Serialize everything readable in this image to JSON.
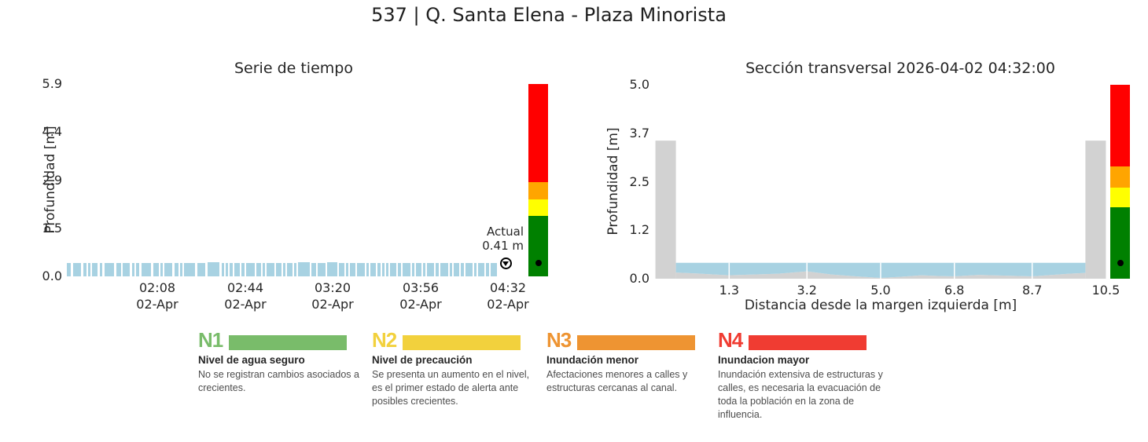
{
  "main_title": "537 | Q. Santa Elena - Plaza Minorista",
  "current": {
    "label_line1": "Actual",
    "label_line2": "0.41 m",
    "value_m": 0.41
  },
  "level_scale": {
    "colors_bottom_up": [
      "#008000",
      "#ffff00",
      "#ffa500",
      "#ff0000"
    ],
    "thresholds_m": [
      1.85,
      2.35,
      2.9
    ],
    "dot_color": "#000000"
  },
  "chart_data": [
    {
      "id": "serie_tiempo",
      "type": "bar",
      "title": "Serie de tiempo",
      "ylabel": "Profundidad [m]",
      "ylim": [
        0,
        5.9
      ],
      "grid": false,
      "bar_color": "#a8d2e2",
      "yticks": [
        {
          "v": 0,
          "label": "0.0"
        },
        {
          "v": 1.475,
          "label": "1.5"
        },
        {
          "v": 2.95,
          "label": "2.9"
        },
        {
          "v": 4.425,
          "label": "4.4"
        },
        {
          "v": 5.9,
          "label": "5.9"
        }
      ],
      "xticks": [
        {
          "time": "02:08",
          "date": "02-Apr",
          "px": 115
        },
        {
          "time": "02:44",
          "date": "02-Apr",
          "px": 227
        },
        {
          "time": "03:20",
          "date": "02-Apr",
          "px": 338
        },
        {
          "time": "03:56",
          "date": "02-Apr",
          "px": 450
        },
        {
          "time": "04:32",
          "date": "02-Apr",
          "px": 561
        }
      ],
      "marker": {
        "px": 558,
        "value_m": 0.41
      },
      "segments": [
        [
          0,
          5,
          0.41
        ],
        [
          8,
          10,
          0.42
        ],
        [
          21,
          4,
          0.4
        ],
        [
          27,
          3,
          0.41
        ],
        [
          32,
          7,
          0.42
        ],
        [
          42,
          3,
          0.4
        ],
        [
          48,
          12,
          0.42
        ],
        [
          63,
          6,
          0.41
        ],
        [
          71,
          9,
          0.42
        ],
        [
          83,
          3,
          0.4
        ],
        [
          88,
          4,
          0.41
        ],
        [
          95,
          12,
          0.42
        ],
        [
          110,
          7,
          0.41
        ],
        [
          119,
          3,
          0.4
        ],
        [
          124,
          10,
          0.42
        ],
        [
          137,
          5,
          0.41
        ],
        [
          144,
          3,
          0.4
        ],
        [
          149,
          14,
          0.42
        ],
        [
          166,
          10,
          0.41
        ],
        [
          179,
          15,
          0.43
        ],
        [
          197,
          3,
          0.4
        ],
        [
          202,
          3,
          0.41
        ],
        [
          207,
          4,
          0.4
        ],
        [
          213,
          7,
          0.42
        ],
        [
          222,
          4,
          0.41
        ],
        [
          228,
          11,
          0.42
        ],
        [
          241,
          6,
          0.41
        ],
        [
          249,
          3,
          0.4
        ],
        [
          254,
          10,
          0.42
        ],
        [
          266,
          7,
          0.41
        ],
        [
          275,
          3,
          0.4
        ],
        [
          280,
          7,
          0.42
        ],
        [
          289,
          3,
          0.41
        ],
        [
          294,
          15,
          0.43
        ],
        [
          311,
          6,
          0.41
        ],
        [
          319,
          10,
          0.42
        ],
        [
          331,
          13,
          0.43
        ],
        [
          346,
          7,
          0.41
        ],
        [
          355,
          3,
          0.4
        ],
        [
          360,
          7,
          0.42
        ],
        [
          369,
          10,
          0.42
        ],
        [
          381,
          3,
          0.4
        ],
        [
          386,
          7,
          0.41
        ],
        [
          395,
          4,
          0.41
        ],
        [
          401,
          3,
          0.4
        ],
        [
          406,
          3,
          0.41
        ],
        [
          411,
          8,
          0.42
        ],
        [
          421,
          4,
          0.41
        ],
        [
          427,
          10,
          0.42
        ],
        [
          439,
          3,
          0.4
        ],
        [
          444,
          7,
          0.41
        ],
        [
          453,
          3,
          0.4
        ],
        [
          458,
          9,
          0.42
        ],
        [
          469,
          4,
          0.41
        ],
        [
          475,
          10,
          0.42
        ],
        [
          487,
          3,
          0.4
        ],
        [
          492,
          7,
          0.41
        ],
        [
          501,
          4,
          0.41
        ],
        [
          507,
          9,
          0.42
        ],
        [
          518,
          3,
          0.4
        ],
        [
          523,
          8,
          0.42
        ],
        [
          533,
          4,
          0.41
        ],
        [
          539,
          8,
          0.42
        ]
      ]
    },
    {
      "id": "seccion_transversal",
      "type": "area",
      "title": "Sección transversal 2026-04-02 04:32:00",
      "xlabel": "Distancia desde la margen izquierda [m]",
      "ylabel": "Profundidad [m]",
      "xlim": [
        -0.53,
        10.53
      ],
      "ylim": [
        0,
        5.0
      ],
      "yticks": [
        {
          "v": 0,
          "label": "0.0"
        },
        {
          "v": 1.25,
          "label": "1.2"
        },
        {
          "v": 2.5,
          "label": "2.5"
        },
        {
          "v": 3.75,
          "label": "3.7"
        },
        {
          "v": 5.0,
          "label": "5.0"
        }
      ],
      "xticks": [
        {
          "v": 1.3,
          "label": "1.3"
        },
        {
          "v": 3.2,
          "label": "3.2"
        },
        {
          "v": 5.0,
          "label": "5.0"
        },
        {
          "v": 6.8,
          "label": "6.8"
        },
        {
          "v": 8.7,
          "label": "8.7"
        },
        {
          "v": 10.5,
          "label": "10.5"
        }
      ],
      "channel": {
        "color": "#d2d2d2",
        "wall_height_m": 3.56,
        "wall_width_m": 0.5,
        "inner_width_m": 10.0,
        "bed_profile": [
          [
            0,
            0.16
          ],
          [
            0.6,
            0.13
          ],
          [
            1.3,
            0.09
          ],
          [
            1.9,
            0.11
          ],
          [
            2.5,
            0.13
          ],
          [
            3.2,
            0.19
          ],
          [
            3.8,
            0.11
          ],
          [
            4.4,
            0.06
          ],
          [
            5.0,
            0.02
          ],
          [
            5.5,
            0.05
          ],
          [
            6.0,
            0.09
          ],
          [
            6.4,
            0.07
          ],
          [
            6.8,
            0.06
          ],
          [
            7.4,
            0.1
          ],
          [
            8.0,
            0.08
          ],
          [
            8.7,
            0.06
          ],
          [
            9.2,
            0.1
          ],
          [
            9.6,
            0.13
          ],
          [
            10.0,
            0.15
          ]
        ]
      },
      "water": {
        "color": "#a8d2e2",
        "level_m": 0.41,
        "gridlines_x": [
          1.3,
          3.2,
          5.0,
          6.8,
          8.7
        ]
      }
    }
  ],
  "legend": {
    "items": [
      {
        "code": "N1",
        "color": "#79bc6a",
        "title": "Nivel de agua seguro",
        "description": "No se registran cambios asociados a crecientes."
      },
      {
        "code": "N2",
        "color": "#f2d13d",
        "title": "Nivel de precaución",
        "description": "Se presenta un aumento en el nivel, es el primer estado de alerta ante posibles crecientes."
      },
      {
        "code": "N3",
        "color": "#ee9432",
        "title": "Inundación menor",
        "description": "Afectaciones menores a calles y estructuras cercanas al canal."
      },
      {
        "code": "N4",
        "color": "#f03c32",
        "title": "Inundacion mayor",
        "description": "Inundación extensiva de estructuras y calles, es necesaria la evacuación de toda la población en la zona de influencia."
      }
    ]
  }
}
